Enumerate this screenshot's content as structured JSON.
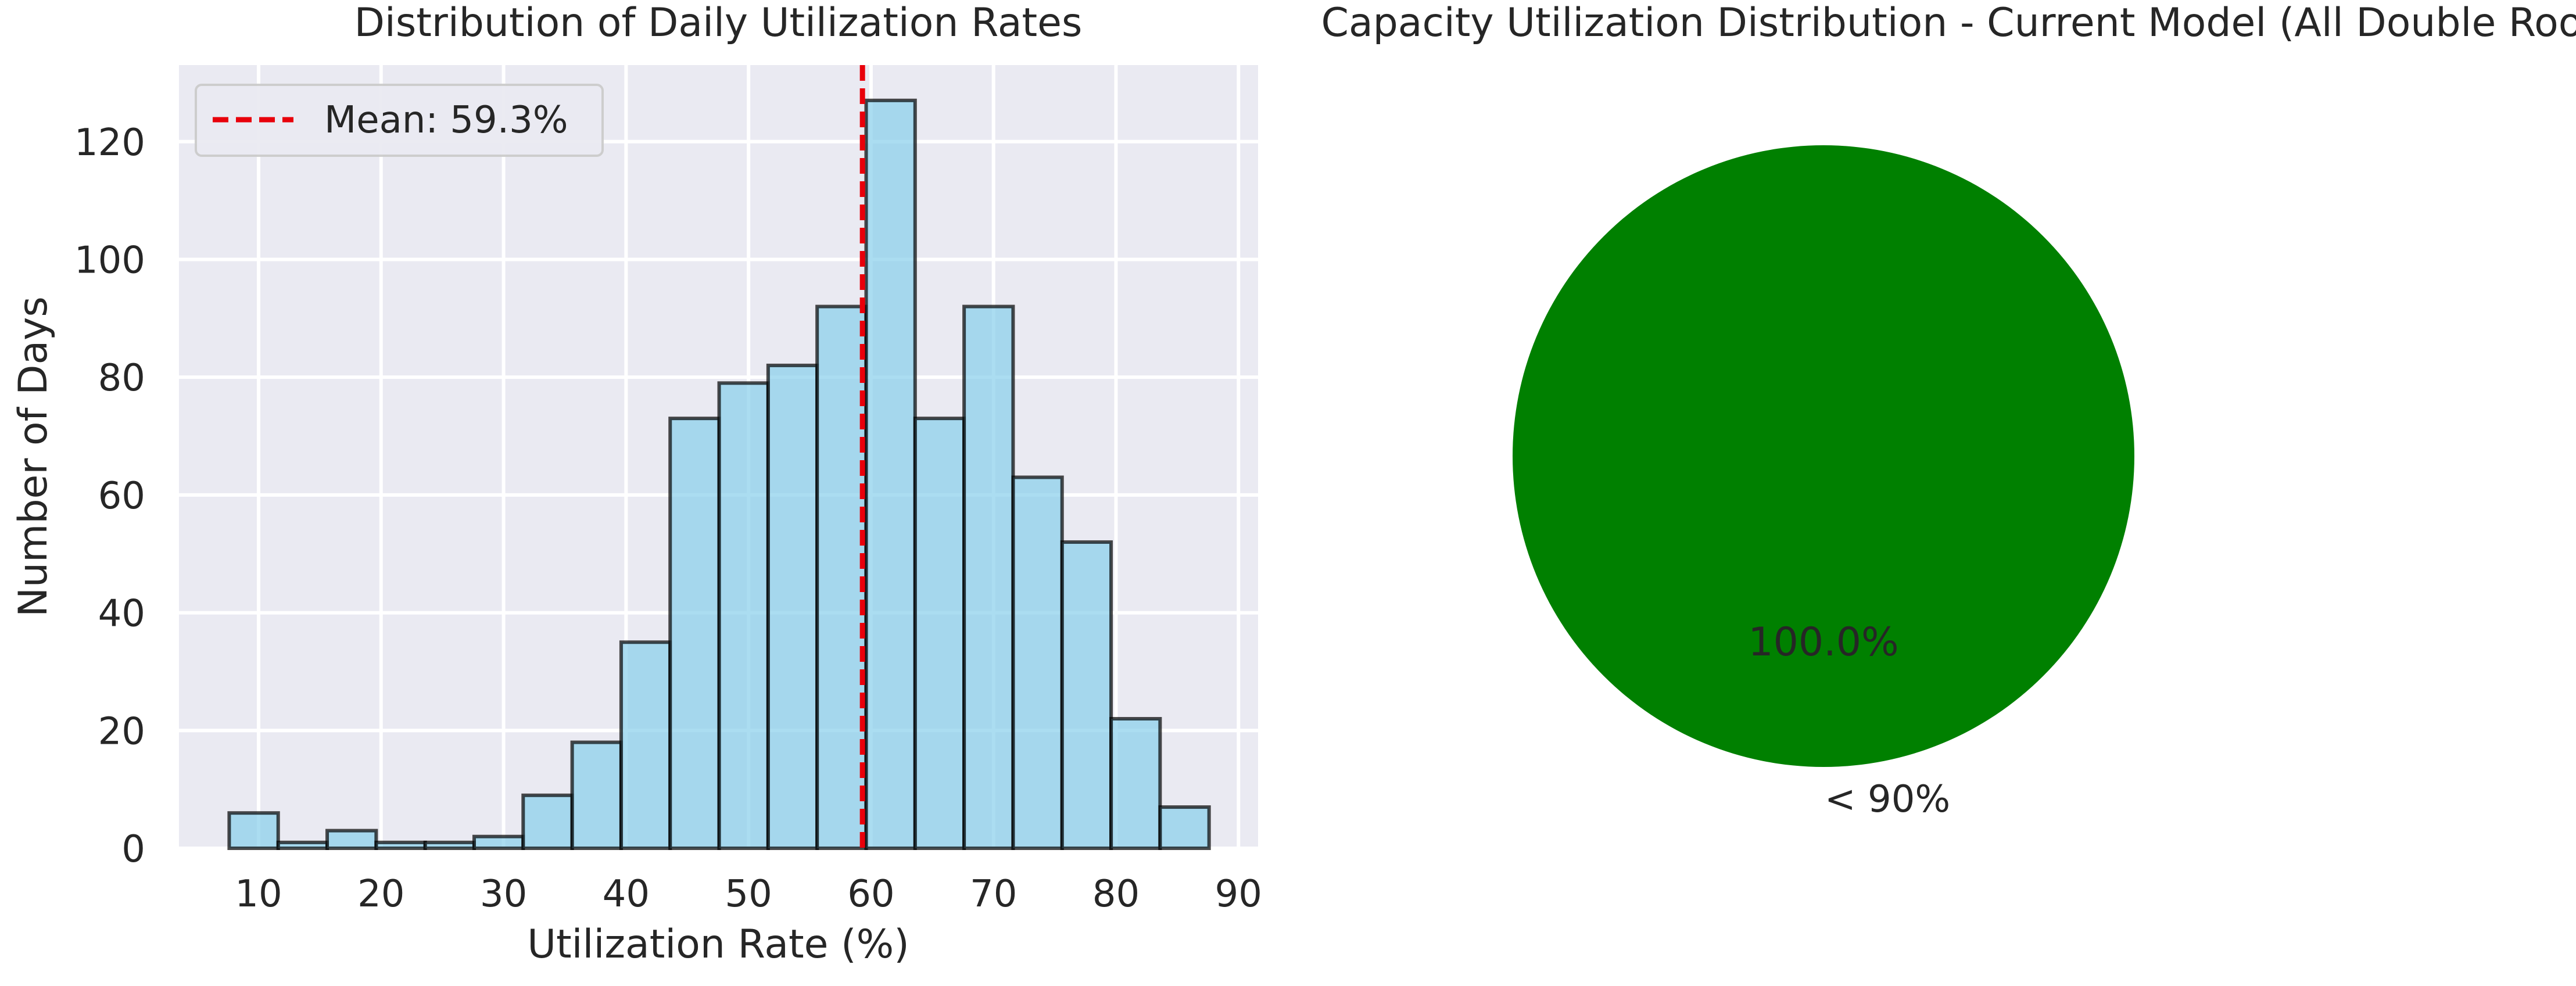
{
  "chart_data": [
    {
      "type": "bar",
      "title": "Distribution of Daily Utilization Rates",
      "xlabel": "Utilization Rate (%)",
      "ylabel": "Number of Days",
      "xlim": [
        3.5,
        91.6
      ],
      "ylim": [
        0,
        133
      ],
      "xticks": [
        10,
        20,
        30,
        40,
        50,
        60,
        70,
        80,
        90
      ],
      "yticks": [
        0,
        20,
        40,
        60,
        80,
        100,
        120
      ],
      "bin_edges": [
        7.6,
        11.6,
        15.6,
        19.6,
        23.6,
        27.6,
        31.6,
        35.6,
        39.6,
        43.6,
        47.6,
        51.6,
        55.6,
        59.6,
        63.6,
        67.6,
        71.6,
        75.6,
        79.6,
        83.6,
        87.6
      ],
      "values": [
        6,
        1,
        3,
        1,
        1,
        2,
        9,
        18,
        35,
        73,
        79,
        82,
        92,
        127,
        73,
        92,
        63,
        52,
        22,
        7
      ],
      "bar_color": "#87ceeb",
      "mean_line": {
        "value": 59.3,
        "label": "Mean: 59.3%",
        "color": "#e8000b"
      },
      "legend_position": "upper-left",
      "grid": true,
      "background": "#eaeaf2"
    },
    {
      "type": "pie",
      "title": "Capacity Utilization Distribution - Current Model (All Double Rooms)",
      "slices": [
        {
          "label": "< 90%",
          "value": 100.0,
          "pct_label": "100.0%",
          "color": "#008000"
        }
      ]
    }
  ]
}
